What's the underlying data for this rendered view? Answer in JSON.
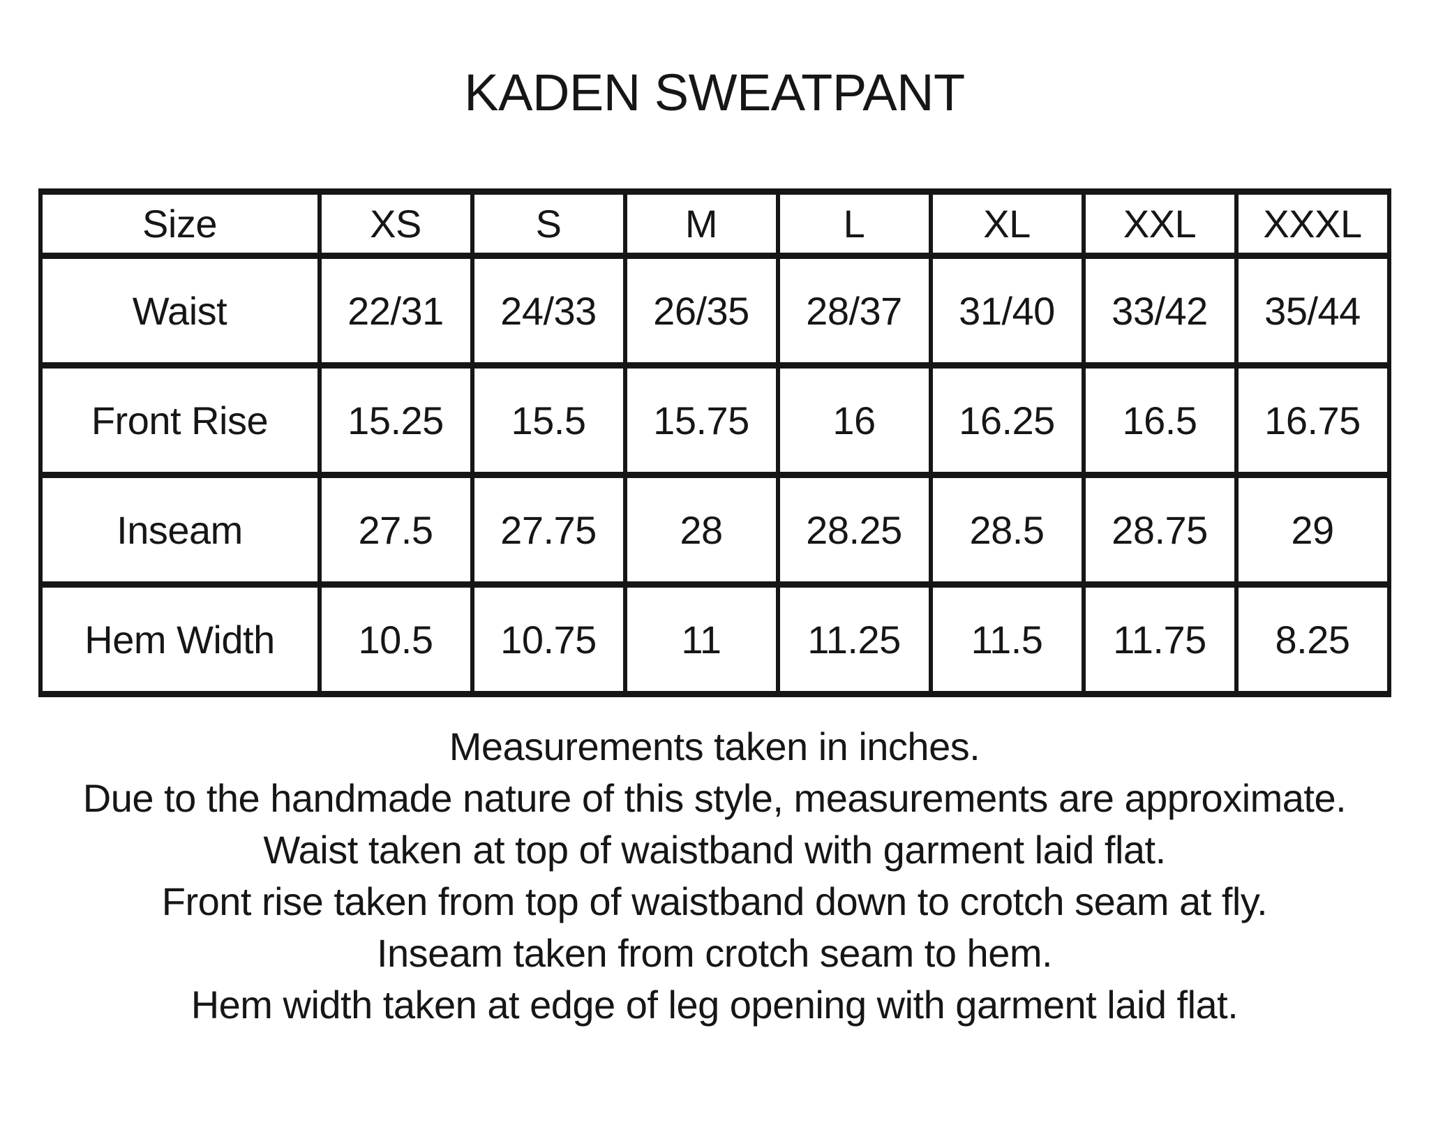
{
  "page": {
    "title": "KADEN SWEATPANT"
  },
  "size_chart": {
    "columns": [
      "Size",
      "XS",
      "S",
      "M",
      "L",
      "XL",
      "XXL",
      "XXXL"
    ],
    "rows": [
      {
        "label": "Waist",
        "values": [
          "22/31",
          "24/33",
          "26/35",
          "28/37",
          "31/40",
          "33/42",
          "35/44"
        ]
      },
      {
        "label": "Front Rise",
        "values": [
          "15.25",
          "15.5",
          "15.75",
          "16",
          "16.25",
          "16.5",
          "16.75"
        ]
      },
      {
        "label": "Inseam",
        "values": [
          "27.5",
          "27.75",
          "28",
          "28.25",
          "28.5",
          "28.75",
          "29"
        ]
      },
      {
        "label": "Hem Width",
        "values": [
          "10.5",
          "10.75",
          "11",
          "11.25",
          "11.5",
          "11.75",
          "8.25"
        ]
      }
    ]
  },
  "notes": [
    "Measurements taken in inches.",
    "Due to the handmade nature of this style, measurements are approximate.",
    "Waist taken at top of waistband with garment laid flat.",
    "Front rise taken from top of waistband down to crotch seam at fly.",
    "Inseam taken from crotch seam to hem.",
    "Hem width taken at edge of leg opening with garment laid flat."
  ],
  "colors": {
    "ink": "#161616",
    "background": "#ffffff"
  }
}
